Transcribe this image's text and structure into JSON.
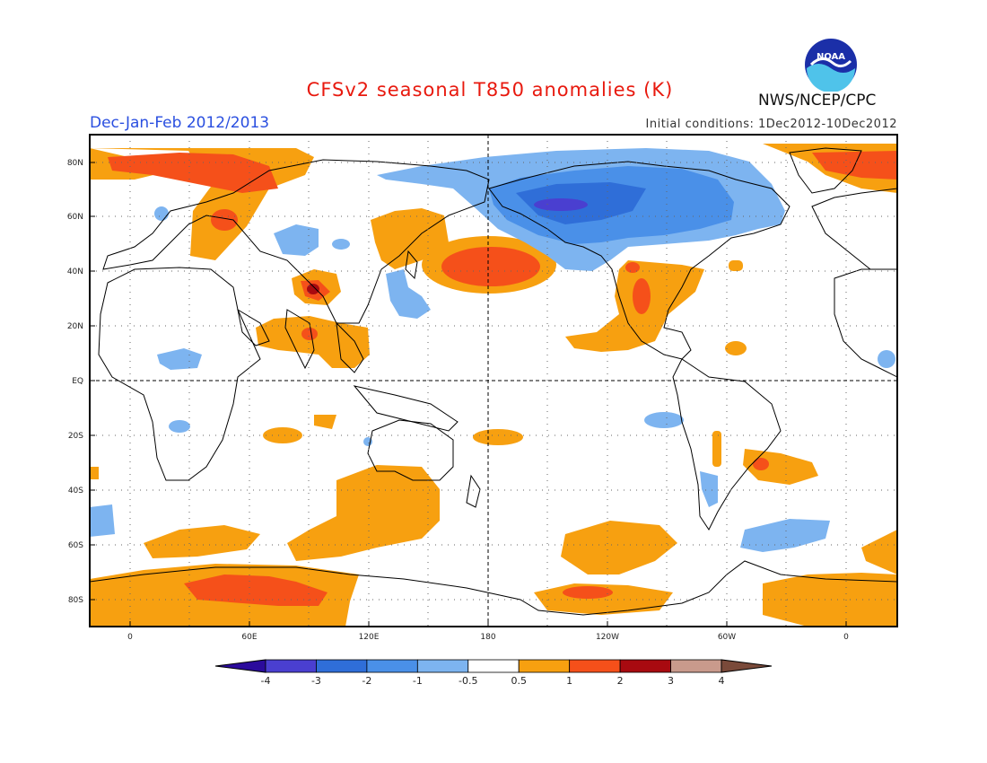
{
  "title": "CFSv2 seasonal T850 anomalies (K)",
  "season": "Dec-Jan-Feb 2012/2013",
  "initial_conditions": "Initial conditions: 1Dec2012-10Dec2012",
  "agency": "NWS/NCEP/CPC",
  "logo_text": "NOAA",
  "lat_labels": [
    "80N",
    "60N",
    "40N",
    "20N",
    "EQ",
    "20S",
    "40S",
    "60S",
    "80S"
  ],
  "lon_labels": [
    "0",
    "60E",
    "120E",
    "180",
    "120W",
    "60W",
    "0"
  ],
  "colorbar": {
    "labels": [
      "-4",
      "-3",
      "-2",
      "-1",
      "-0.5",
      "0.5",
      "1",
      "2",
      "3",
      "4"
    ],
    "colors": [
      "#2b0b9c",
      "#4a3fd0",
      "#2f6ed8",
      "#4a90e8",
      "#7db4f0",
      "#ffffff",
      "#f7a010",
      "#f5501a",
      "#a80a10",
      "#c99a8c",
      "#7a4a3a"
    ]
  }
}
